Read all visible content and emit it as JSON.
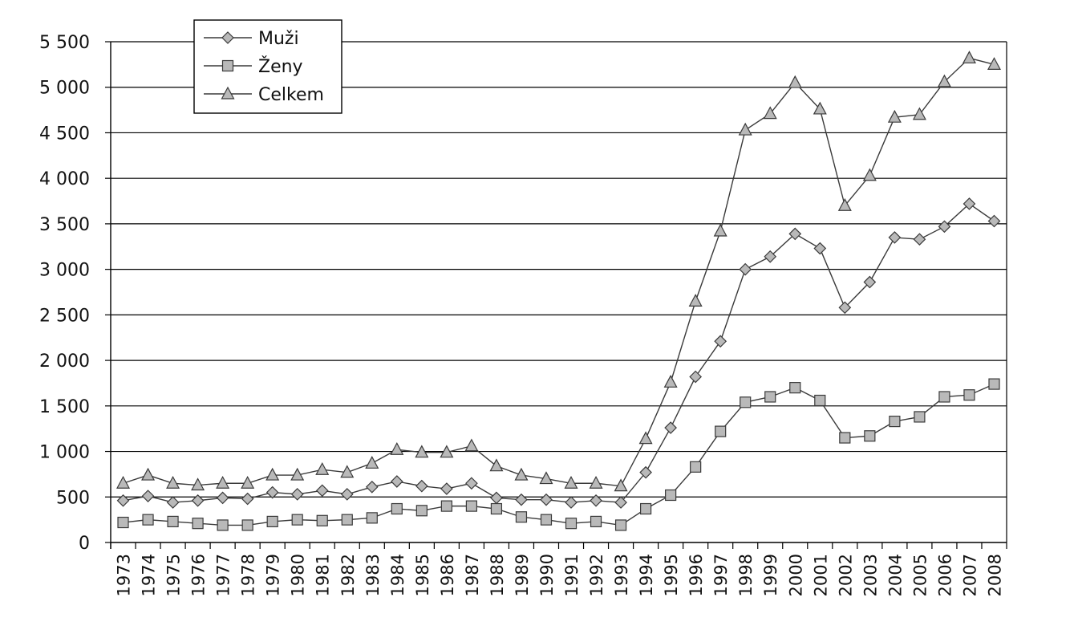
{
  "chart_data": {
    "type": "line",
    "x": [
      "1973",
      "1974",
      "1975",
      "1976",
      "1977",
      "1978",
      "1979",
      "1980",
      "1981",
      "1982",
      "1983",
      "1984",
      "1985",
      "1986",
      "1987",
      "1988",
      "1989",
      "1990",
      "1991",
      "1992",
      "1993",
      "1994",
      "1995",
      "1996",
      "1997",
      "1998",
      "1999",
      "2000",
      "2001",
      "2002",
      "2003",
      "2004",
      "2005",
      "2006",
      "2007",
      "2008"
    ],
    "ylim": [
      0,
      5500
    ],
    "yticks": [
      "0",
      "500",
      "1 000",
      "1 500",
      "2 000",
      "2 500",
      "3 000",
      "3 500",
      "4 000",
      "4 500",
      "5 000",
      "5 500"
    ],
    "grid": true,
    "legend_position": "top-left",
    "series": [
      {
        "name": "Muži",
        "marker": "diamond",
        "values": [
          460,
          510,
          440,
          460,
          490,
          480,
          550,
          530,
          570,
          530,
          610,
          670,
          620,
          590,
          650,
          490,
          470,
          470,
          440,
          460,
          440,
          770,
          1260,
          1820,
          2210,
          3000,
          3140,
          3390,
          3230,
          2580,
          2860,
          3350,
          3330,
          3470,
          3720,
          3530
        ]
      },
      {
        "name": "Ženy",
        "marker": "square",
        "values": [
          220,
          250,
          230,
          210,
          190,
          190,
          230,
          250,
          240,
          250,
          270,
          370,
          350,
          400,
          400,
          370,
          280,
          250,
          210,
          230,
          190,
          370,
          520,
          830,
          1220,
          1540,
          1600,
          1700,
          1560,
          1150,
          1170,
          1330,
          1380,
          1600,
          1620,
          1740
        ]
      },
      {
        "name": "Celkem",
        "marker": "triangle",
        "values": [
          650,
          740,
          650,
          630,
          650,
          650,
          740,
          740,
          800,
          770,
          870,
          1020,
          990,
          990,
          1060,
          840,
          740,
          700,
          650,
          650,
          620,
          1140,
          1760,
          2650,
          3420,
          4530,
          4710,
          5050,
          4760,
          3700,
          4030,
          4670,
          4700,
          5060,
          5320,
          5250
        ]
      }
    ]
  },
  "colors": {
    "marker_fill": "#b9b9b9",
    "marker_stroke": "#3a3a3a",
    "line": "#3a3a3a",
    "grid": "#000000"
  }
}
